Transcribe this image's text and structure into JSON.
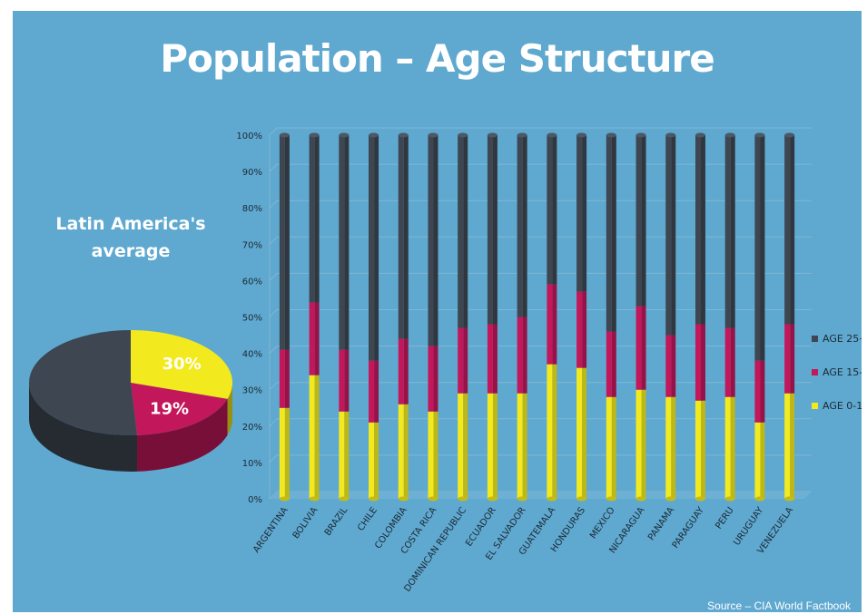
{
  "title": "Population – Age Structure",
  "source": "Source – CIA World Factbook",
  "pie": {
    "title_line1": "Latin America's",
    "title_line2": "average",
    "slices": [
      {
        "name": "AGE 0-14",
        "value": 30,
        "label": "30%",
        "color": "#f2ea1f"
      },
      {
        "name": "AGE 15-25",
        "value": 19,
        "label": "19%",
        "color": "#c2185b"
      },
      {
        "name": "AGE 25+",
        "value": 51,
        "label": "",
        "color": "#3d4651"
      }
    ]
  },
  "chart_data": {
    "type": "bar",
    "stacked": true,
    "categories": [
      "ARGENTINA",
      "BOLIVIA",
      "BRAZIL",
      "CHILE",
      "COLOMBIA",
      "COSTA RICA",
      "DOMINICAN REPUBLIC",
      "ECUADOR",
      "EL SALVADOR",
      "GUATEMALA",
      "HONDURAS",
      "MEXICO",
      "NICARAGUA",
      "PANAMA",
      "PARAGUAY",
      "PERU",
      "URUGUAY",
      "VENEZUELA"
    ],
    "series": [
      {
        "name": "AGE 0-14",
        "color": "#f2ea1f",
        "values": [
          25,
          34,
          24,
          21,
          26,
          24,
          29,
          29,
          29,
          37,
          36,
          28,
          30,
          28,
          27,
          28,
          21,
          29
        ]
      },
      {
        "name": "AGE 15-25",
        "color": "#c2185b",
        "values": [
          16,
          20,
          17,
          17,
          18,
          18,
          18,
          19,
          21,
          22,
          21,
          18,
          23,
          17,
          21,
          19,
          17,
          19
        ]
      },
      {
        "name": "AGE 25+",
        "color": "#3d4651",
        "values": [
          59,
          46,
          59,
          62,
          56,
          58,
          53,
          52,
          50,
          41,
          43,
          54,
          47,
          55,
          52,
          53,
          62,
          52
        ]
      }
    ],
    "yticks": [
      "0%",
      "10%",
      "20%",
      "30%",
      "40%",
      "50%",
      "60%",
      "70%",
      "80%",
      "90%",
      "100%"
    ],
    "ylim": [
      0,
      100
    ],
    "legend": {
      "position": "right",
      "entries": [
        "AGE 25+",
        "AGE 15-25",
        "AGE 0-14"
      ]
    },
    "grid": true
  }
}
